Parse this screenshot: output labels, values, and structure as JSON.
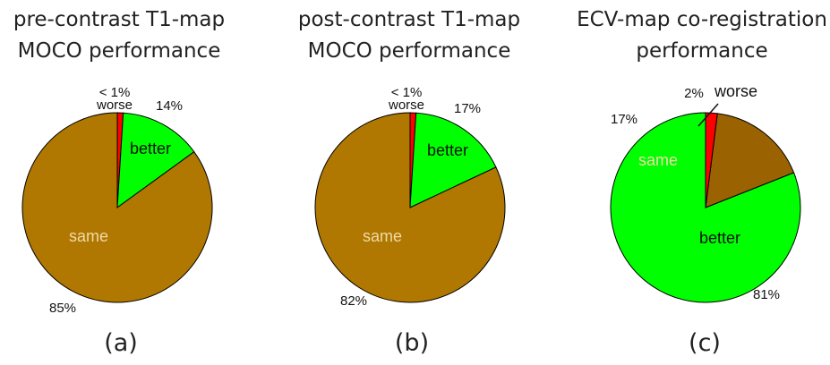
{
  "colors": {
    "better": "#00ff00",
    "same": "#b07800",
    "same_c": "#9a6200",
    "worse": "#ff0000",
    "outline": "#000000"
  },
  "chart_data": [
    {
      "type": "pie",
      "title_lines": [
        "pre-contrast T1-map",
        "MOCO performance"
      ],
      "caption": "(a)",
      "slices": [
        {
          "label": "worse",
          "value": 1,
          "pct_label": "< 1%"
        },
        {
          "label": "better",
          "value": 14,
          "pct_label": "14%"
        },
        {
          "label": "same",
          "value": 85,
          "pct_label": "85%"
        }
      ]
    },
    {
      "type": "pie",
      "title_lines": [
        "post-contrast T1-map",
        "MOCO performance"
      ],
      "caption": "(b)",
      "slices": [
        {
          "label": "worse",
          "value": 1,
          "pct_label": "< 1%"
        },
        {
          "label": "better",
          "value": 17,
          "pct_label": "17%"
        },
        {
          "label": "same",
          "value": 82,
          "pct_label": "82%"
        }
      ]
    },
    {
      "type": "pie",
      "title_lines": [
        "ECV-map co-registration",
        "performance"
      ],
      "caption": "(c)",
      "slices": [
        {
          "label": "better",
          "value": 81,
          "pct_label": "81%"
        },
        {
          "label": "same",
          "value": 17,
          "pct_label": "17%"
        },
        {
          "label": "worse",
          "value": 2,
          "pct_label": "2%"
        }
      ]
    }
  ]
}
